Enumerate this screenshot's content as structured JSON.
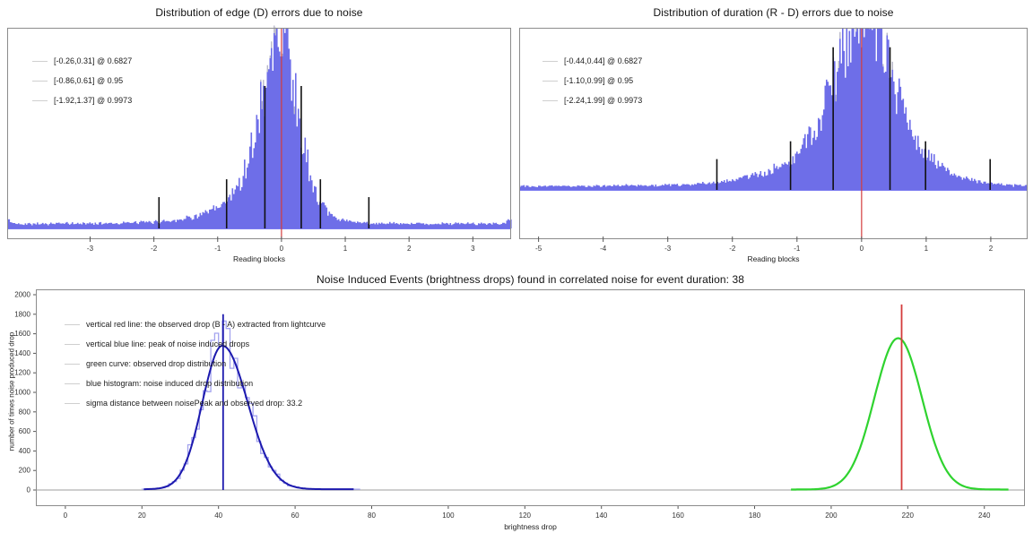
{
  "figure": {
    "background": "#ffffff",
    "border_color": "#8c8c8c",
    "text_color": "#111111"
  },
  "colors": {
    "histogram_blue": "#6e6ee8",
    "histogram_baseline_blue": "#7a7af0",
    "histogram_gray_tips": "#b9b9c9",
    "light_histogram_blue": "#a3a3ef",
    "dark_blue_curve": "#1c19ae",
    "green_curve": "#2fd32f",
    "red_line": "#d43c3c",
    "black_marker": "#111111",
    "gray_axhline": "#b0b0b0",
    "legend_handle_gray": "#cfcfcf"
  },
  "chart_data": [
    {
      "id": "edge-errors",
      "type": "bar",
      "subtype": "noisy-histogram",
      "title": "Distribution of edge (D) errors due to noise",
      "xlabel": "Reading blocks",
      "xlim": [
        -4.3,
        3.6
      ],
      "x_ticks": [
        -3,
        -2,
        -1,
        0,
        1,
        2,
        3
      ],
      "grid": false,
      "legend_position": "upper-left",
      "legend": [
        "[-0.26,0.31] @ 0.6827",
        "[-0.86,0.61] @ 0.95",
        "[-1.92,1.37] @ 0.9973"
      ],
      "confidence_intervals": [
        {
          "range": [
            -0.26,
            0.31
          ],
          "coverage": 0.6827,
          "marker_height": 0.71
        },
        {
          "range": [
            -0.86,
            0.61
          ],
          "coverage": 0.95,
          "marker_height": 0.245
        },
        {
          "range": [
            -1.92,
            1.37
          ],
          "coverage": 0.9973,
          "marker_height": 0.156
        }
      ],
      "red_vline_x": 0,
      "density_shape": [
        [
          -4.3,
          0.035
        ],
        [
          -4.2,
          0.012
        ],
        [
          -3.6,
          0.012
        ],
        [
          -3,
          0.013
        ],
        [
          -2.4,
          0.016
        ],
        [
          -2,
          0.02
        ],
        [
          -1.7,
          0.028
        ],
        [
          -1.4,
          0.045
        ],
        [
          -1.2,
          0.062
        ],
        [
          -1,
          0.09
        ],
        [
          -0.9,
          0.112
        ],
        [
          -0.8,
          0.14
        ],
        [
          -0.7,
          0.19
        ],
        [
          -0.6,
          0.26
        ],
        [
          -0.5,
          0.36
        ],
        [
          -0.4,
          0.48
        ],
        [
          -0.3,
          0.64
        ],
        [
          -0.25,
          0.72
        ],
        [
          -0.2,
          0.8
        ],
        [
          -0.15,
          0.87
        ],
        [
          -0.1,
          0.93
        ],
        [
          -0.05,
          0.97
        ],
        [
          0,
          1
        ],
        [
          0.05,
          0.96
        ],
        [
          0.1,
          0.9
        ],
        [
          0.15,
          0.82
        ],
        [
          0.2,
          0.72
        ],
        [
          0.25,
          0.62
        ],
        [
          0.3,
          0.52
        ],
        [
          0.35,
          0.43
        ],
        [
          0.4,
          0.34
        ],
        [
          0.45,
          0.26
        ],
        [
          0.5,
          0.2
        ],
        [
          0.6,
          0.12
        ],
        [
          0.7,
          0.075
        ],
        [
          0.8,
          0.05
        ],
        [
          0.9,
          0.035
        ],
        [
          1,
          0.027
        ],
        [
          1.2,
          0.018
        ],
        [
          1.5,
          0.013
        ],
        [
          2,
          0.012
        ],
        [
          3,
          0.012
        ],
        [
          3.45,
          0.012
        ],
        [
          3.6,
          0.03
        ]
      ]
    },
    {
      "id": "duration-errors",
      "type": "bar",
      "subtype": "noisy-histogram",
      "title": "Distribution of duration (R - D) errors due to noise",
      "xlabel": "Reading blocks",
      "xlim": [
        -5.3,
        2.57
      ],
      "x_ticks": [
        -5,
        -4,
        -3,
        -2,
        -1,
        0,
        1,
        2
      ],
      "grid": false,
      "legend_position": "upper-left",
      "legend": [
        "[-0.44,0.44] @ 0.6827",
        "[-1.10,0.99] @ 0.95",
        "[-2.24,1.99] @ 0.9973"
      ],
      "confidence_intervals": [
        {
          "range": [
            -0.44,
            0.44
          ],
          "coverage": 0.6827,
          "marker_height": 0.88
        },
        {
          "range": [
            -1.1,
            0.99
          ],
          "coverage": 0.95,
          "marker_height": 0.3
        },
        {
          "range": [
            -2.24,
            1.99
          ],
          "coverage": 0.9973,
          "marker_height": 0.19
        }
      ],
      "red_vline_x": 0,
      "density_shape": [
        [
          -5.3,
          0.012
        ],
        [
          -4.5,
          0.012
        ],
        [
          -4,
          0.013
        ],
        [
          -3.4,
          0.015
        ],
        [
          -3,
          0.017
        ],
        [
          -2.6,
          0.022
        ],
        [
          -2.3,
          0.03
        ],
        [
          -2,
          0.045
        ],
        [
          -1.8,
          0.06
        ],
        [
          -1.6,
          0.08
        ],
        [
          -1.4,
          0.105
        ],
        [
          -1.2,
          0.145
        ],
        [
          -1.1,
          0.17
        ],
        [
          -1,
          0.2
        ],
        [
          -0.9,
          0.25
        ],
        [
          -0.8,
          0.31
        ],
        [
          -0.7,
          0.38
        ],
        [
          -0.6,
          0.47
        ],
        [
          -0.5,
          0.57
        ],
        [
          -0.4,
          0.68
        ],
        [
          -0.3,
          0.8
        ],
        [
          -0.2,
          0.92
        ],
        [
          -0.1,
          1.02
        ],
        [
          0,
          1.08
        ],
        [
          0.1,
          1.04
        ],
        [
          0.2,
          0.95
        ],
        [
          0.3,
          0.85
        ],
        [
          0.4,
          0.74
        ],
        [
          0.5,
          0.62
        ],
        [
          0.6,
          0.51
        ],
        [
          0.7,
          0.41
        ],
        [
          0.8,
          0.33
        ],
        [
          0.9,
          0.26
        ],
        [
          1,
          0.21
        ],
        [
          1.1,
          0.17
        ],
        [
          1.2,
          0.14
        ],
        [
          1.4,
          0.09
        ],
        [
          1.6,
          0.06
        ],
        [
          1.8,
          0.04
        ],
        [
          2,
          0.026
        ],
        [
          2.2,
          0.018
        ],
        [
          2.57,
          0.012
        ]
      ]
    },
    {
      "id": "noise-induced-events",
      "type": "line",
      "subtype": "gaussians-with-histogram",
      "title": "Noise Induced Events (brightness drops) found in correlated noise for event duration: 38",
      "xlabel": "brightness drop",
      "ylabel": "number of times noise produced drop",
      "xlim": [
        -7.7,
        250.6
      ],
      "ylim": [
        -165,
        2055
      ],
      "x_ticks": [
        0,
        20,
        40,
        60,
        80,
        100,
        120,
        140,
        160,
        180,
        200,
        220,
        240
      ],
      "y_ticks": [
        0,
        200,
        400,
        600,
        800,
        1000,
        1200,
        1400,
        1600,
        1800,
        2000
      ],
      "grid": false,
      "legend_position": "upper-left",
      "legend": [
        "vertical red line: the observed drop (B - A) extracted from lightcurve",
        "vertical blue line: peak of noise induced drops",
        "green curve: observed drop distribution",
        "blue histogram: noise induced drop distribution",
        "sigma distance between noisePeak and observed drop: 33.2"
      ],
      "sigma_distance": 33.2,
      "event_duration": 38,
      "blue_curve": {
        "center": 41,
        "sigma_left": 5.2,
        "sigma_right": 6.6,
        "peak": 1470,
        "floor": 8,
        "x_range": [
          20.5,
          75.5
        ]
      },
      "green_curve": {
        "center": 217.5,
        "sigma": 6.2,
        "peak": 1550,
        "floor": 5,
        "x_range": [
          189.5,
          246.5
        ]
      },
      "blue_vline": {
        "x": 41.2,
        "y_top": 1800
      },
      "red_vline": {
        "x": 218.4,
        "y_top": 1900
      }
    }
  ]
}
